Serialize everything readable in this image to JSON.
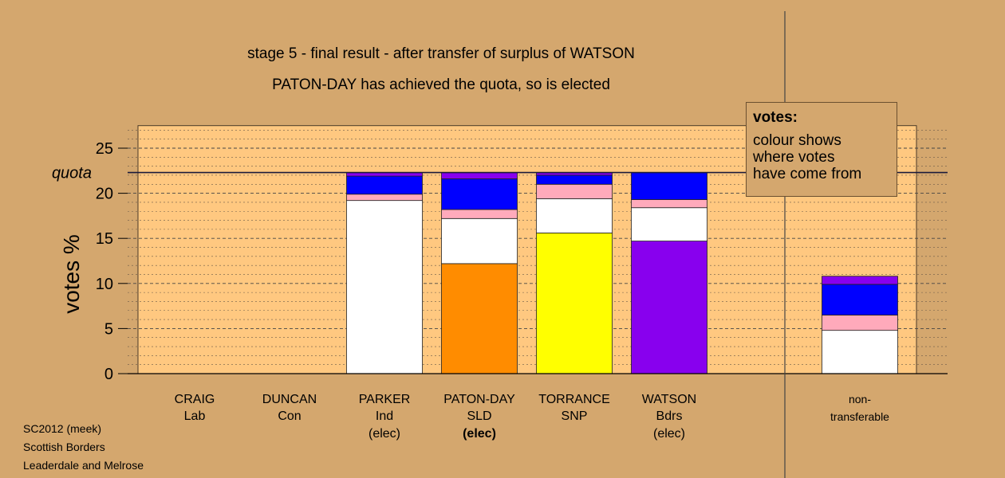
{
  "header": {
    "line1": "stage 5 - final result - after transfer of surplus of WATSON",
    "line2": "PATON-DAY has achieved the quota, so is elected"
  },
  "legend": {
    "title": "votes:",
    "line1": "colour shows",
    "line2": "where votes",
    "line3": "have come from"
  },
  "footer": {
    "line1": "SC2012 (meek)",
    "line2": "Scottish Borders",
    "line3": "Leaderdale and Melrose"
  },
  "chart_data": {
    "type": "bar",
    "stacked": true,
    "title": "stage 5 - final result - after transfer of surplus of WATSON",
    "subtitle": "PATON-DAY has achieved the quota, so is elected",
    "ylabel": "votes %",
    "ylim": [
      0,
      27.5
    ],
    "yticks": [
      0,
      5,
      10,
      15,
      20,
      25
    ],
    "quota": 22.3,
    "quota_label": "quota",
    "grid": true,
    "colors": {
      "PARKER": "#ffffff",
      "PATON-DAY": "#ff8c00",
      "TORRANCE": "#ffff00",
      "WATSON": "#8800ee",
      "CRAIG": "#ffaabb",
      "DUNCAN": "#0000ff",
      "background_band": "#ffc880",
      "page": "#d4a76e"
    },
    "categories": [
      {
        "name": "CRAIG",
        "party": "Lab",
        "status": ""
      },
      {
        "name": "DUNCAN",
        "party": "Con",
        "status": ""
      },
      {
        "name": "PARKER",
        "party": "Ind",
        "status": "(elec)"
      },
      {
        "name": "PATON-DAY",
        "party": "SLD",
        "status": "(elec)",
        "status_bold": true
      },
      {
        "name": "TORRANCE",
        "party": "SNP",
        "status": ""
      },
      {
        "name": "WATSON",
        "party": "Bdrs",
        "status": "(elec)"
      },
      {
        "name": "non-",
        "party": "transferable",
        "status": ""
      }
    ],
    "stacks": [
      [],
      [],
      [
        {
          "from": "PARKER",
          "value": 19.2
        },
        {
          "from": "CRAIG",
          "value": 0.7
        },
        {
          "from": "DUNCAN",
          "value": 2.0
        },
        {
          "from": "WATSON",
          "value": 0.4
        }
      ],
      [
        {
          "from": "PATON-DAY",
          "value": 12.2
        },
        {
          "from": "PARKER",
          "value": 5.0
        },
        {
          "from": "CRAIG",
          "value": 1.0
        },
        {
          "from": "DUNCAN",
          "value": 3.4
        },
        {
          "from": "WATSON",
          "value": 0.7
        }
      ],
      [
        {
          "from": "TORRANCE",
          "value": 15.6
        },
        {
          "from": "PARKER",
          "value": 3.8
        },
        {
          "from": "CRAIG",
          "value": 1.6
        },
        {
          "from": "DUNCAN",
          "value": 1.0
        },
        {
          "from": "WATSON",
          "value": 0.3
        }
      ],
      [
        {
          "from": "WATSON",
          "value": 14.7
        },
        {
          "from": "PARKER",
          "value": 3.7
        },
        {
          "from": "CRAIG",
          "value": 0.9
        },
        {
          "from": "DUNCAN",
          "value": 3.0
        }
      ],
      [
        {
          "from": "PARKER",
          "value": 4.8
        },
        {
          "from": "CRAIG",
          "value": 1.7
        },
        {
          "from": "DUNCAN",
          "value": 3.4
        },
        {
          "from": "WATSON",
          "value": 0.9
        }
      ]
    ]
  }
}
